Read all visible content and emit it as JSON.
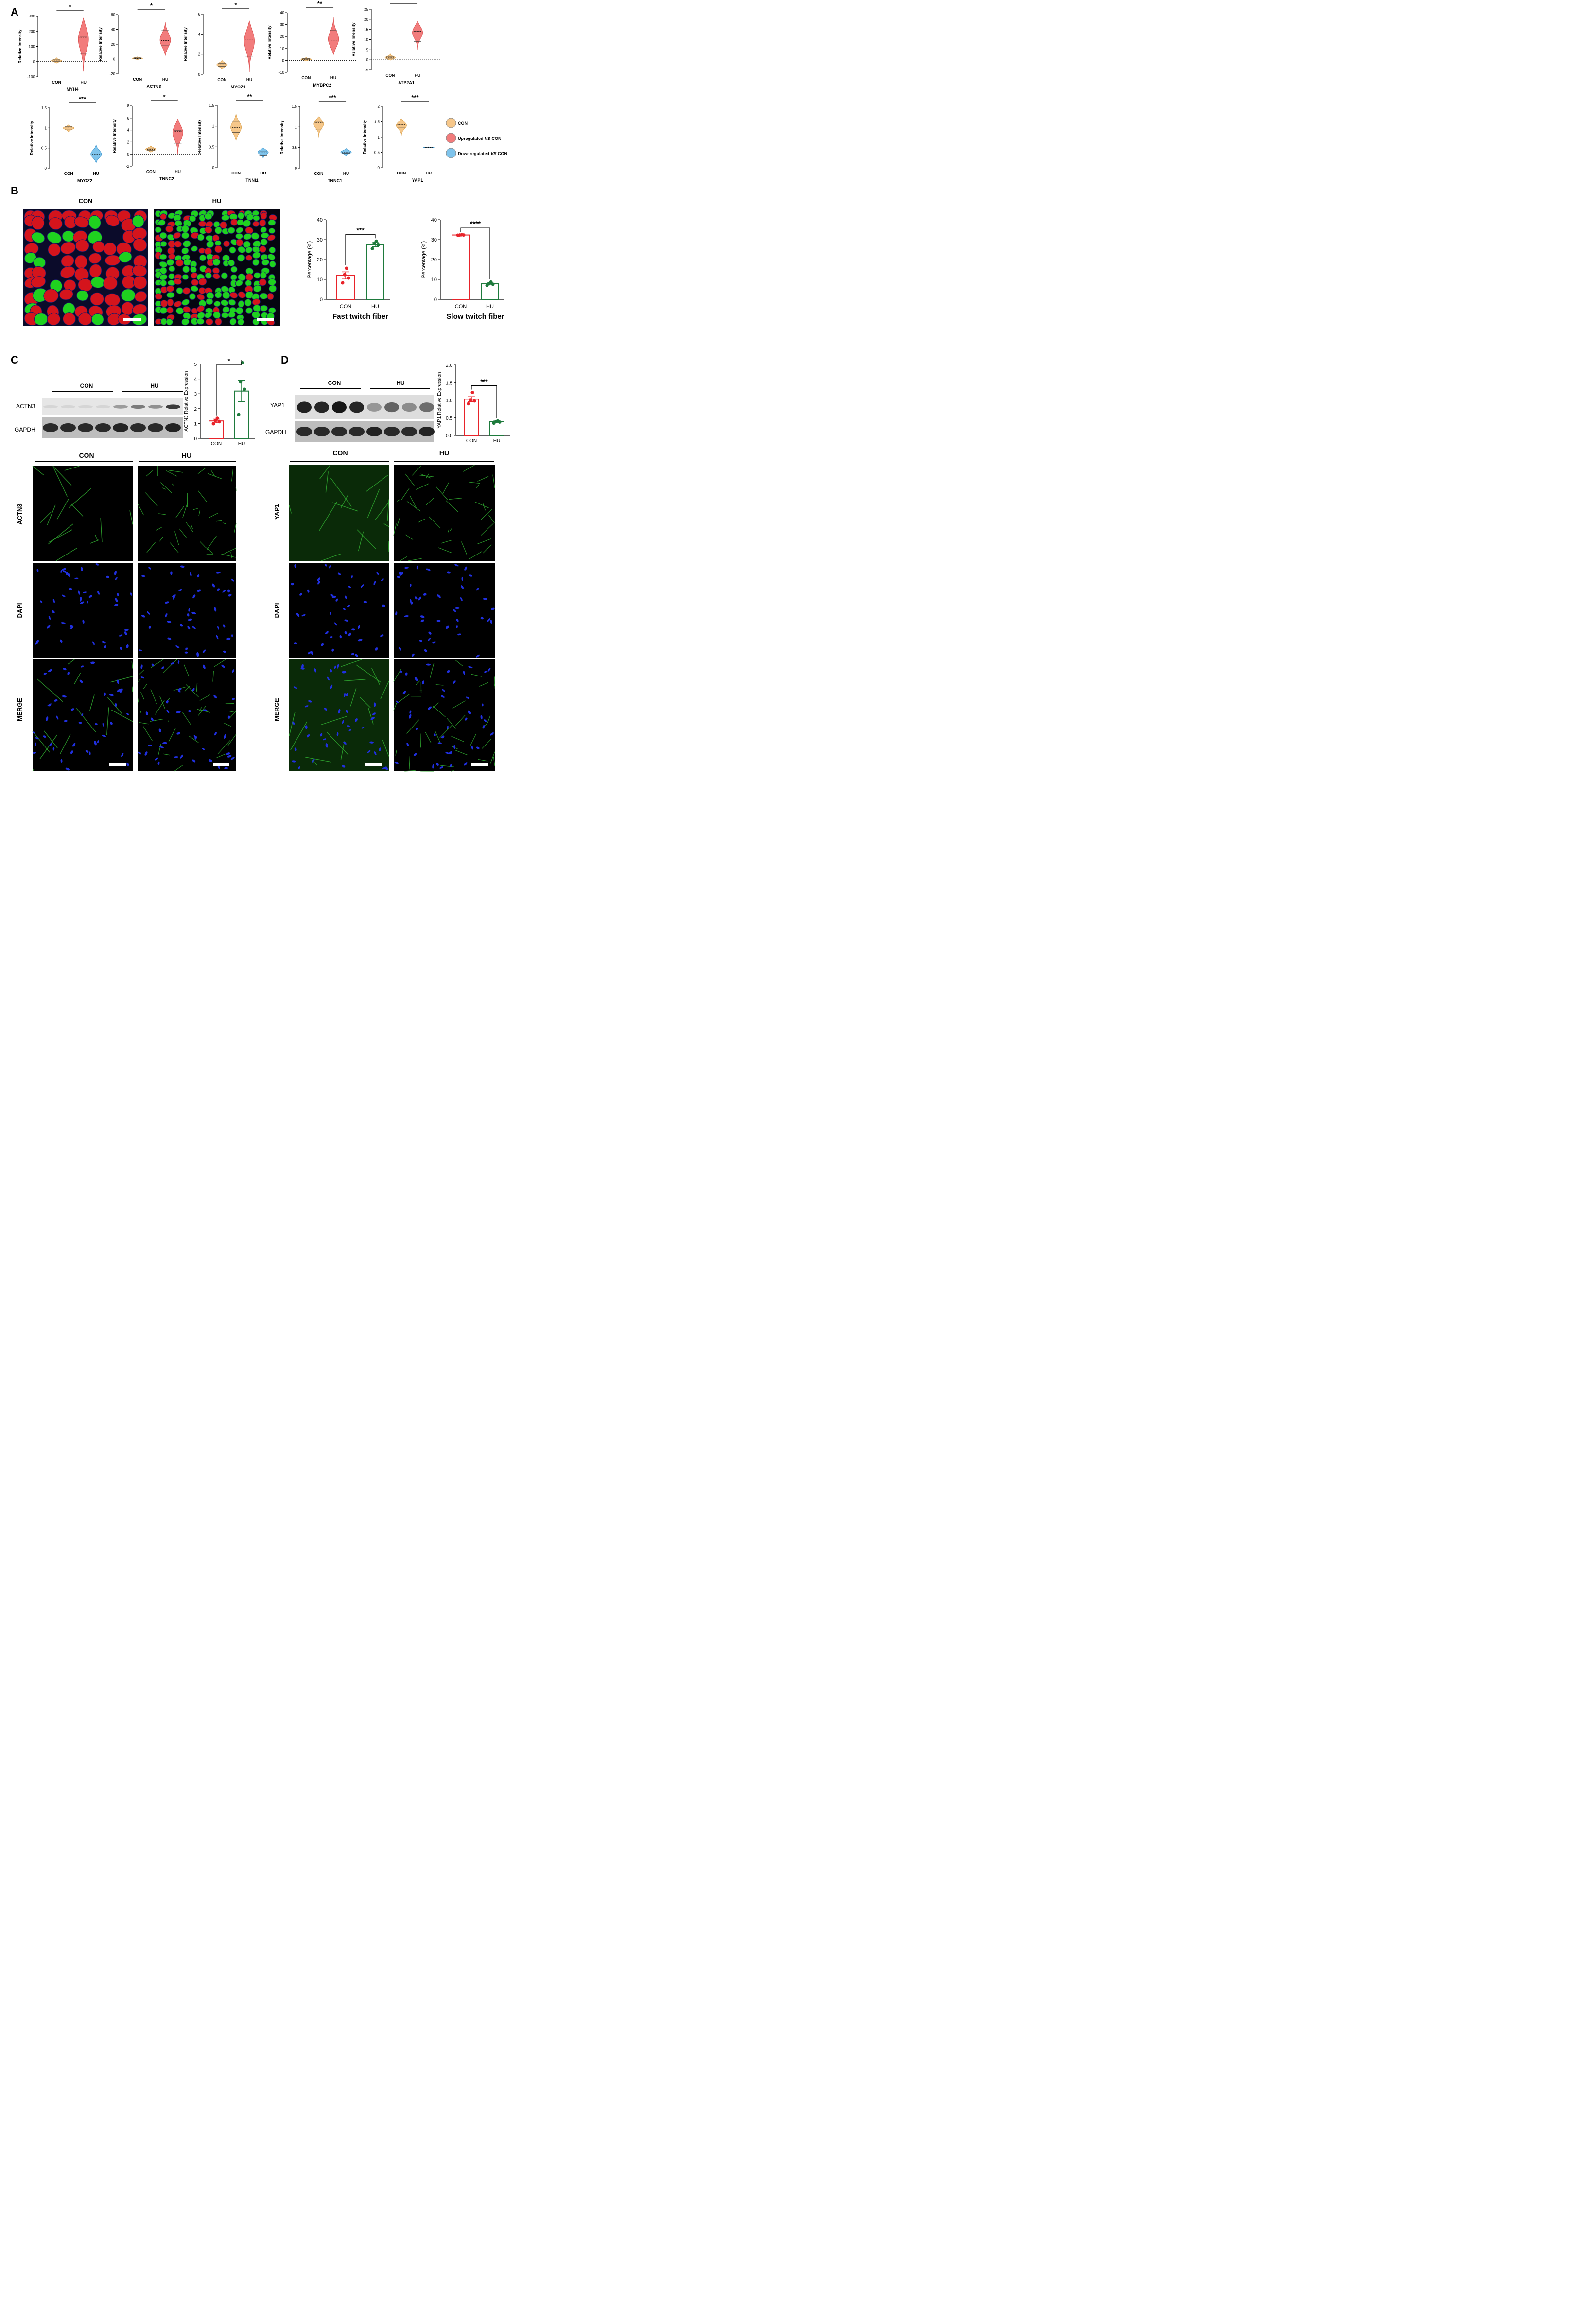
{
  "colors": {
    "con_fill": "#f6c78a",
    "con_stroke": "#d9a04a",
    "up_fill": "#f27c7c",
    "up_stroke": "#d94b4b",
    "down_fill": "#7fc4ec",
    "down_stroke": "#3f97cf",
    "bar_red": "#e8232a",
    "bar_green": "#1e7a3c",
    "fiber_red": "#d4141c",
    "fiber_green": "#1fd11f",
    "stain_green": "#2fa82f",
    "stain_blue": "#2030e0"
  },
  "panels": {
    "A": "A",
    "B": "B",
    "C": "C",
    "D": "D"
  },
  "legend": [
    {
      "label": "CON",
      "prefix": "",
      "italic": "",
      "suffix": "",
      "color": "con"
    },
    {
      "label": "",
      "prefix": "Upregulated ",
      "italic": "VS",
      "suffix": " CON",
      "color": "up"
    },
    {
      "label": "",
      "prefix": "Downregulated ",
      "italic": "VS",
      "suffix": " CON",
      "color": "down"
    }
  ],
  "chart_data": [
    {
      "id": "MYH4",
      "type": "violin",
      "gene": "MYH4",
      "ylabel": "Relative Intensity",
      "ylim": [
        -100,
        300
      ],
      "yticks": [
        -100,
        0,
        100,
        200,
        300
      ],
      "categories": [
        "CON",
        "HU"
      ],
      "sig": "*",
      "direction": "up",
      "con": {
        "min": -10,
        "max": 25,
        "median": 5,
        "q1": 0,
        "q3": 12
      },
      "hu": {
        "min": -65,
        "max": 285,
        "median": 160,
        "q1": 50,
        "q3": 162
      }
    },
    {
      "id": "ACTN3",
      "type": "violin",
      "gene": "ACTN3",
      "ylabel": "Relative Intensity",
      "ylim": [
        -20,
        60
      ],
      "yticks": [
        -20,
        0,
        20,
        40,
        60
      ],
      "categories": [
        "CON",
        "HU"
      ],
      "sig": "*",
      "direction": "up",
      "con": {
        "min": -1,
        "max": 3,
        "median": 1,
        "q1": 0.5,
        "q3": 1.7
      },
      "hu": {
        "min": 5,
        "max": 50,
        "median": 25,
        "q1": 18,
        "q3": 39
      }
    },
    {
      "id": "MYOZ1",
      "type": "violin",
      "gene": "MYOZ1",
      "ylabel": "Relative Intensity",
      "ylim": [
        0,
        6
      ],
      "yticks": [
        0,
        2,
        4,
        6
      ],
      "categories": [
        "CON",
        "HU"
      ],
      "sig": "*",
      "direction": "up",
      "con": {
        "min": 0.5,
        "max": 1.4,
        "median": 0.95,
        "q1": 0.8,
        "q3": 1.1
      },
      "hu": {
        "min": 0.2,
        "max": 5.3,
        "median": 3.5,
        "q1": 1.8,
        "q3": 3.95
      }
    },
    {
      "id": "MYBPC2",
      "type": "violin",
      "gene": "MYBPC2",
      "ylabel": "Relative Intensity",
      "ylim": [
        -10,
        40
      ],
      "yticks": [
        -10,
        0,
        10,
        20,
        30,
        40
      ],
      "categories": [
        "CON",
        "HU"
      ],
      "sig": "**",
      "direction": "up",
      "con": {
        "min": -0.5,
        "max": 2.5,
        "median": 1,
        "q1": 0.5,
        "q3": 1.5
      },
      "hu": {
        "min": 5,
        "max": 36,
        "median": 17,
        "q1": 13,
        "q3": 25
      }
    },
    {
      "id": "ATP2A1",
      "type": "violin",
      "gene": "ATP2A1",
      "ylabel": "Relative Intensity",
      "ylim": [
        -5,
        25
      ],
      "yticks": [
        -5,
        0,
        5,
        10,
        15,
        20,
        25
      ],
      "categories": [
        "CON",
        "HU"
      ],
      "sig": "**",
      "direction": "up",
      "con": {
        "min": -0.2,
        "max": 3,
        "median": 1,
        "q1": 0.5,
        "q3": 1.5
      },
      "hu": {
        "min": 5,
        "max": 19,
        "median": 14,
        "q1": 9,
        "q3": 14.2
      }
    },
    {
      "id": "MYOZ2",
      "type": "violin",
      "gene": "MYOZ2",
      "ylabel": "Relative Intensity",
      "ylim": [
        0,
        1.5
      ],
      "yticks": [
        0.0,
        0.5,
        1.0,
        1.5
      ],
      "categories": [
        "CON",
        "HU"
      ],
      "sig": "***",
      "direction": "down",
      "con": {
        "min": 0.9,
        "max": 1.08,
        "median": 1.0,
        "q1": 0.97,
        "q3": 1.03
      },
      "hu": {
        "min": 0.13,
        "max": 0.58,
        "median": 0.35,
        "q1": 0.25,
        "q3": 0.38
      }
    },
    {
      "id": "TNNC2",
      "type": "violin",
      "gene": "TNNC2",
      "ylabel": "Relative Intensity",
      "ylim": [
        -2,
        8
      ],
      "yticks": [
        -2,
        0,
        2,
        4,
        6,
        8
      ],
      "categories": [
        "CON",
        "HU"
      ],
      "sig": "*",
      "direction": "up",
      "con": {
        "min": 0.3,
        "max": 1.4,
        "median": 0.8,
        "q1": 0.6,
        "q3": 1.0
      },
      "hu": {
        "min": 0,
        "max": 5.8,
        "median": 3.8,
        "q1": 1.8,
        "q3": 3.9
      }
    },
    {
      "id": "TNNI1",
      "type": "violin",
      "gene": "TNNI1",
      "ylabel": "Relative Intensity",
      "ylim": [
        0,
        1.5
      ],
      "yticks": [
        0.0,
        0.5,
        1.0,
        1.5
      ],
      "categories": [
        "CON",
        "HU"
      ],
      "sig": "**",
      "direction": "down",
      "con": {
        "min": 0.65,
        "max": 1.3,
        "median": 0.97,
        "q1": 0.85,
        "q3": 1.1
      },
      "hu": {
        "min": 0.22,
        "max": 0.48,
        "median": 0.38,
        "q1": 0.3,
        "q3": 0.4
      }
    },
    {
      "id": "TNNC1",
      "type": "violin",
      "gene": "TNNC1",
      "ylabel": "Relative Intensity",
      "ylim": [
        0,
        1.5
      ],
      "yticks": [
        0.0,
        0.5,
        1.0,
        1.5
      ],
      "categories": [
        "CON",
        "HU"
      ],
      "sig": "***",
      "direction": "down",
      "con": {
        "min": 0.75,
        "max": 1.25,
        "median": 1.1,
        "q1": 0.93,
        "q3": 1.12
      },
      "hu": {
        "min": 0.3,
        "max": 0.48,
        "median": 0.39,
        "q1": 0.36,
        "q3": 0.42
      }
    },
    {
      "id": "YAP1",
      "type": "violin",
      "gene": "YAP1",
      "ylabel": "Relative Intensity",
      "ylim": [
        0,
        2.0
      ],
      "yticks": [
        0.0,
        0.5,
        1.0,
        1.5,
        2.0
      ],
      "categories": [
        "CON",
        "HU"
      ],
      "sig": "***",
      "direction": "down",
      "con": {
        "min": 1.05,
        "max": 1.6,
        "median": 1.4,
        "q1": 1.3,
        "q3": 1.45
      },
      "hu": {
        "min": 0.64,
        "max": 0.68,
        "median": 0.66,
        "q1": 0.65,
        "q3": 0.67
      }
    },
    {
      "id": "fast",
      "type": "bar",
      "title": "Fast twitch fiber",
      "ylabel": "Percentage (%)",
      "ylim": [
        0,
        40
      ],
      "yticks": [
        0,
        10,
        20,
        30,
        40
      ],
      "categories": [
        "CON",
        "HU"
      ],
      "sig": "***",
      "values": [
        12,
        27.5
      ],
      "sem": [
        1.8,
        1.0
      ],
      "points": [
        [
          8.3,
          10.7,
          12.4,
          15.6
        ],
        [
          25.5,
          27.3,
          28.0,
          29.2
        ]
      ]
    },
    {
      "id": "slow",
      "type": "bar",
      "title": "Slow twitch fiber",
      "ylabel": "Percentage (%)",
      "ylim": [
        0,
        40
      ],
      "yticks": [
        0,
        10,
        20,
        30,
        40
      ],
      "categories": [
        "CON",
        "HU"
      ],
      "sig": "****",
      "values": [
        32.3,
        7.8
      ],
      "sem": [
        0.1,
        0.5
      ],
      "points": [
        [
          32.2,
          32.3,
          32.3,
          32.4
        ],
        [
          7.0,
          7.6,
          7.8,
          8.7
        ]
      ]
    },
    {
      "id": "actn3_wb",
      "type": "bar",
      "title": "",
      "ylabel": "ACTN3 Relative Expression",
      "ylim": [
        0,
        5
      ],
      "yticks": [
        0,
        1,
        2,
        3,
        4,
        5
      ],
      "categories": [
        "CON",
        "HU"
      ],
      "sig": "*",
      "values": [
        1.17,
        3.18
      ],
      "sem": [
        0.12,
        0.72
      ],
      "points": [
        [
          0.98,
          1.12,
          1.2,
          1.35
        ],
        [
          1.6,
          3.3,
          3.8,
          5.1
        ]
      ]
    },
    {
      "id": "yap1_wb",
      "type": "bar",
      "title": "",
      "ylabel": "YAP1 Relative Expression",
      "ylim": [
        0,
        2.0
      ],
      "yticks": [
        0.0,
        0.5,
        1.0,
        1.5,
        2.0
      ],
      "categories": [
        "CON",
        "HU"
      ],
      "sig": "***",
      "values": [
        1.03,
        0.39
      ],
      "sem": [
        0.07,
        0.02
      ],
      "points": [
        [
          0.9,
          0.98,
          1.01,
          1.22
        ],
        [
          0.35,
          0.38,
          0.39,
          0.41
        ]
      ]
    }
  ],
  "panelB": {
    "con_label": "CON",
    "hu_label": "HU"
  },
  "panelC": {
    "con_label": "CON",
    "hu_label": "HU",
    "blot_top": "ACTN3",
    "blot_bottom": "GAPDH",
    "rows": [
      "ACTN3",
      "DAPI",
      "MERGE"
    ]
  },
  "panelD": {
    "con_label": "CON",
    "hu_label": "HU",
    "blot_top": "YAP1",
    "blot_bottom": "GAPDH",
    "rows": [
      "YAP1",
      "DAPI",
      "MERGE"
    ]
  }
}
